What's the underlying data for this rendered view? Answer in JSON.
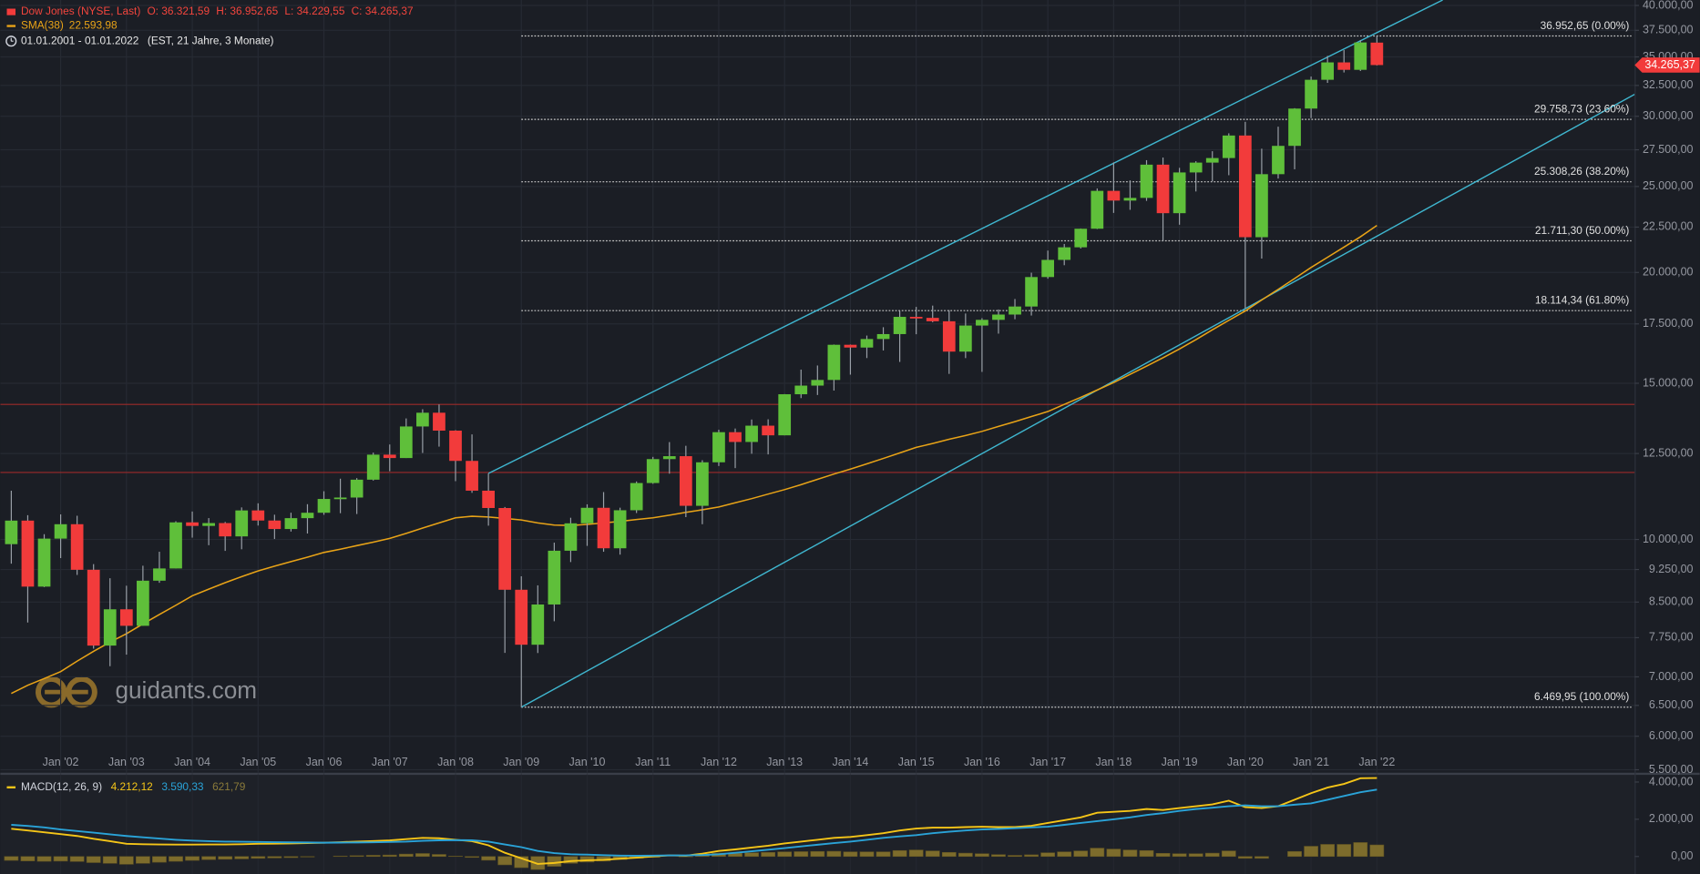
{
  "chart_data": [
    {
      "type": "candlestick",
      "title": "Dow Jones (NYSE, Last)",
      "title_values": [
        "O: 36.321,59",
        "H: 36.952,65",
        "L: 34.229,55",
        "C: 34.265,37"
      ],
      "period": "01.01.2001 - 01.01.2022",
      "period_note": "(EST, 21 Jahre, 3 Monate)",
      "watermark": "guidants.com",
      "last_label": "34.265,37",
      "up_color": "#5fbf3a",
      "down_color": "#f23b3b",
      "x": [
        "2001-04",
        "2001-07",
        "2001-10",
        "2002-01",
        "2002-04",
        "2002-07",
        "2002-10",
        "2003-01",
        "2003-04",
        "2003-07",
        "2003-10",
        "2004-01",
        "2004-04",
        "2004-07",
        "2004-10",
        "2005-01",
        "2005-04",
        "2005-07",
        "2005-10",
        "2006-01",
        "2006-04",
        "2006-07",
        "2006-10",
        "2007-01",
        "2007-04",
        "2007-07",
        "2007-10",
        "2008-01",
        "2008-04",
        "2008-07",
        "2008-10",
        "2009-01",
        "2009-04",
        "2009-07",
        "2009-10",
        "2010-01",
        "2010-04",
        "2010-07",
        "2010-10",
        "2011-01",
        "2011-04",
        "2011-07",
        "2011-10",
        "2012-01",
        "2012-04",
        "2012-07",
        "2012-10",
        "2013-01",
        "2013-04",
        "2013-07",
        "2013-10",
        "2014-01",
        "2014-04",
        "2014-07",
        "2014-10",
        "2015-01",
        "2015-04",
        "2015-07",
        "2015-10",
        "2016-01",
        "2016-04",
        "2016-07",
        "2016-10",
        "2017-01",
        "2017-04",
        "2017-07",
        "2017-10",
        "2018-01",
        "2018-04",
        "2018-07",
        "2018-10",
        "2019-01",
        "2019-04",
        "2019-07",
        "2019-10",
        "2020-01",
        "2020-04",
        "2020-07",
        "2020-10",
        "2021-01",
        "2021-04",
        "2021-07",
        "2021-10",
        "2022-01"
      ],
      "open": [
        9879,
        10502,
        8848,
        10022,
        10404,
        9243,
        7592,
        8342,
        7992,
        8985,
        9275,
        10454,
        10358,
        10435,
        10080,
        10783,
        10504,
        10275,
        10569,
        10718,
        11109,
        11150,
        11679,
        12463,
        12354,
        13409,
        13896,
        13265,
        12263,
        11350,
        10851,
        8776,
        7609,
        8447,
        9712,
        10428,
        10857,
        9774,
        10788,
        11578,
        12320,
        12414,
        10913,
        12218,
        13212,
        12880,
        13437,
        13104,
        14579,
        14910,
        15130,
        16577,
        16458,
        16827,
        17043,
        17823,
        17776,
        17620,
        16285,
        17425,
        17685,
        17930,
        18308,
        19763,
        20663,
        21350,
        22405,
        24719,
        24103,
        24271,
        26458,
        23327,
        25929,
        26600,
        26917,
        28538,
        21917,
        25813,
        27782,
        30606,
        32981,
        34503,
        33844,
        36321.59
      ],
      "high": [
        11350,
        10650,
        10137,
        10673,
        10635,
        9380,
        9043,
        8869,
        9341,
        9686,
        10484,
        10753,
        10571,
        10465,
        10868,
        10984,
        10664,
        10719,
        10959,
        11334,
        11709,
        11727,
        12529,
        12796,
        13692,
        14022,
        14198,
        13280,
        13136,
        11867,
        10881,
        9088,
        8877,
        9918,
        10580,
        10955,
        11309,
        10860,
        11625,
        12391,
        12876,
        12753,
        12284,
        13297,
        13338,
        13653,
        13661,
        14585,
        15542,
        15709,
        16588,
        16588,
        16978,
        17350,
        18103,
        18289,
        18351,
        18138,
        17978,
        17762,
        18168,
        18668,
        19987,
        21169,
        21535,
        22420,
        24876,
        26617,
        25400,
        26769,
        26952,
        26241,
        26695,
        27398,
        28702,
        29569,
        27580,
        29199,
        30637,
        33259,
        35091,
        35631,
        36565,
        36952.65
      ],
      "low": [
        9390,
        8062,
        8836,
        9529,
        9120,
        7532,
        7197,
        7416,
        7992,
        8936,
        9275,
        10048,
        9852,
        9708,
        9749,
        10368,
        10012,
        10207,
        10156,
        10661,
        10706,
        10683,
        11652,
        11939,
        12354,
        12518,
        12725,
        11634,
        11287,
        10365,
        7449,
        6469.95,
        7447,
        8087,
        9430,
        9835,
        9686,
        9614,
        10711,
        11555,
        11862,
        10597,
        10404,
        12101,
        12035,
        12492,
        12471,
        13104,
        14434,
        14551,
        14719,
        15340,
        16015,
        16334,
        15855,
        17037,
        17575,
        15370,
        16013,
        15450,
        17063,
        17713,
        17884,
        19677,
        20380,
        21283,
        22385,
        23344,
        23532,
        24084,
        21713,
        22639,
        24680,
        25339,
        25743,
        18214,
        20735,
        25523,
        26143,
        29856,
        32716,
        33613,
        33741,
        34229.55
      ],
      "close": [
        10502,
        8848,
        10022,
        10404,
        9243,
        7592,
        8342,
        7992,
        8985,
        9275,
        10454,
        10358,
        10435,
        10080,
        10783,
        10504,
        10275,
        10569,
        10718,
        11109,
        11150,
        11679,
        12463,
        12354,
        13409,
        13896,
        13265,
        12263,
        11350,
        10851,
        8776,
        7609,
        8447,
        9712,
        10428,
        10857,
        9774,
        10788,
        11578,
        12320,
        12414,
        10913,
        12218,
        13212,
        12880,
        13437,
        13104,
        14579,
        14910,
        15130,
        16577,
        16458,
        16827,
        17043,
        17823,
        17776,
        17620,
        16285,
        17425,
        17685,
        17930,
        18308,
        19763,
        20663,
        21350,
        22405,
        24719,
        24103,
        24271,
        26458,
        23327,
        25929,
        26600,
        26917,
        28538,
        21917,
        25813,
        27782,
        30606,
        32981,
        34503,
        33844,
        36338,
        34265.37
      ],
      "overlays": [
        {
          "name": "SMA(38)",
          "value_label": "22.593,98",
          "color": "#e8a317",
          "values": [
            6705,
            6850,
            6970,
            7096,
            7290,
            7480,
            7660,
            7830,
            8030,
            8230,
            8430,
            8640,
            8790,
            8940,
            9080,
            9216,
            9330,
            9440,
            9550,
            9668,
            9750,
            9840,
            9930,
            10028,
            10160,
            10300,
            10440,
            10579,
            10620,
            10600,
            10560,
            10519,
            10440,
            10380,
            10370,
            10400,
            10440,
            10480,
            10530,
            10579,
            10650,
            10730,
            10800,
            10880,
            11000,
            11120,
            11250,
            11380,
            11530,
            11690,
            11850,
            12006,
            12170,
            12340,
            12520,
            12700,
            12830,
            12970,
            13100,
            13240,
            13410,
            13580,
            13760,
            13940,
            14200,
            14460,
            14740,
            15030,
            15350,
            15680,
            16030,
            16400,
            16800,
            17230,
            17660,
            18100,
            18620,
            19140,
            19690,
            20260,
            20800,
            21360,
            21940,
            22593.98
          ]
        }
      ],
      "hlines": {
        "values": [
          14200,
          11900
        ],
        "color": "#9c2a2a"
      },
      "trendlines": [
        {
          "x": [
            "2008-07",
            "2023-01"
          ],
          "y": [
            11870,
            40570
          ],
          "color": "#3fb6cf"
        },
        {
          "x": [
            "2009-01",
            "2025-12"
          ],
          "y": [
            6470,
            31760
          ],
          "color": "#3fb6cf"
        }
      ],
      "fib": {
        "start": "2009-01",
        "color": "#c8c8c8",
        "levels": [
          {
            "value": 36952.65,
            "label": "36.952,65 (0.00%)"
          },
          {
            "value": 29758.73,
            "label": "29.758,73 (23.60%)"
          },
          {
            "value": 25308.26,
            "label": "25.308,26 (38.20%)"
          },
          {
            "value": 21711.3,
            "label": "21.711,30 (50.00%)"
          },
          {
            "value": 18114.34,
            "label": "18.114,34 (61.80%)"
          },
          {
            "value": 6469.95,
            "label": "6.469,95 (100.00%)"
          }
        ]
      },
      "xlim": [
        "2001-02",
        "2025-12"
      ],
      "xticks": [
        {
          "value": "2002-01",
          "label": "Jan '02"
        },
        {
          "value": "2003-01",
          "label": "Jan '03"
        },
        {
          "value": "2004-01",
          "label": "Jan '04"
        },
        {
          "value": "2005-01",
          "label": "Jan '05"
        },
        {
          "value": "2006-01",
          "label": "Jan '06"
        },
        {
          "value": "2007-01",
          "label": "Jan '07"
        },
        {
          "value": "2008-01",
          "label": "Jan '08"
        },
        {
          "value": "2009-01",
          "label": "Jan '09"
        },
        {
          "value": "2010-01",
          "label": "Jan '10"
        },
        {
          "value": "2011-01",
          "label": "Jan '11"
        },
        {
          "value": "2012-01",
          "label": "Jan '12"
        },
        {
          "value": "2013-01",
          "label": "Jan '13"
        },
        {
          "value": "2014-01",
          "label": "Jan '14"
        },
        {
          "value": "2015-01",
          "label": "Jan '15"
        },
        {
          "value": "2016-01",
          "label": "Jan '16"
        },
        {
          "value": "2017-01",
          "label": "Jan '17"
        },
        {
          "value": "2018-01",
          "label": "Jan '18"
        },
        {
          "value": "2019-01",
          "label": "Jan '19"
        },
        {
          "value": "2020-01",
          "label": "Jan '20"
        },
        {
          "value": "2021-01",
          "label": "Jan '21"
        },
        {
          "value": "2022-01",
          "label": "Jan '22"
        }
      ],
      "ylim": [
        5450,
        40570
      ],
      "log": true,
      "grid": true,
      "yticks": [
        {
          "value": 40000,
          "label": "40.000,00"
        },
        {
          "value": 37500,
          "label": "37.500,00"
        },
        {
          "value": 35000,
          "label": "35.000,00"
        },
        {
          "value": 32500,
          "label": "32.500,00"
        },
        {
          "value": 30000,
          "label": "30.000,00"
        },
        {
          "value": 27500,
          "label": "27.500,00"
        },
        {
          "value": 25000,
          "label": "25.000,00"
        },
        {
          "value": 22500,
          "label": "22.500,00"
        },
        {
          "value": 20000,
          "label": "20.000,00"
        },
        {
          "value": 17500,
          "label": "17.500,00"
        },
        {
          "value": 15000,
          "label": "15.000,00"
        },
        {
          "value": 12500,
          "label": "12.500,00"
        },
        {
          "value": 10000,
          "label": "10.000,00"
        },
        {
          "value": 9250,
          "label": "9.250,00"
        },
        {
          "value": 8500,
          "label": "8.500,00"
        },
        {
          "value": 7750,
          "label": "7.750,00"
        },
        {
          "value": 7000,
          "label": "7.000,00"
        },
        {
          "value": 6500,
          "label": "6.500,00"
        },
        {
          "value": 6000,
          "label": "6.000,00"
        },
        {
          "value": 5500,
          "label": "5.500,00"
        }
      ]
    },
    {
      "type": "macd",
      "title": "MACD(12, 26, 9)",
      "series": [
        {
          "value_label": "4.212,12",
          "color": "#f5c518",
          "values": [
            1490,
            1400,
            1300,
            1200,
            1100,
            950,
            820,
            680,
            660,
            650,
            640,
            640,
            650,
            650,
            660,
            680,
            690,
            700,
            720,
            740,
            770,
            800,
            830,
            860,
            930,
            1000,
            980,
            900,
            820,
            600,
            200,
            -100,
            -400,
            -350,
            -250,
            -200,
            -180,
            -120,
            -60,
            0,
            60,
            40,
            150,
            300,
            380,
            480,
            580,
            700,
            800,
            900,
            1000,
            1050,
            1150,
            1250,
            1400,
            1500,
            1550,
            1550,
            1580,
            1600,
            1580,
            1580,
            1650,
            1800,
            1950,
            2100,
            2350,
            2400,
            2450,
            2550,
            2500,
            2600,
            2700,
            2800,
            3000,
            2650,
            2600,
            2700,
            3050,
            3400,
            3700,
            3900,
            4200,
            4212.12
          ]
        },
        {
          "value_label": "3.590,33",
          "color": "#2aa3d8",
          "values": [
            1700,
            1640,
            1560,
            1450,
            1370,
            1280,
            1190,
            1100,
            1030,
            960,
            900,
            850,
            820,
            800,
            790,
            780,
            770,
            760,
            750,
            740,
            745,
            755,
            765,
            780,
            800,
            840,
            870,
            880,
            870,
            800,
            650,
            500,
            300,
            180,
            120,
            100,
            70,
            50,
            40,
            50,
            60,
            60,
            80,
            120,
            200,
            280,
            360,
            450,
            540,
            630,
            720,
            800,
            900,
            1000,
            1080,
            1150,
            1250,
            1330,
            1400,
            1450,
            1480,
            1520,
            1560,
            1600,
            1700,
            1800,
            1900,
            2000,
            2100,
            2230,
            2330,
            2450,
            2550,
            2620,
            2700,
            2750,
            2700,
            2700,
            2780,
            2850,
            3050,
            3250,
            3450,
            3590.33
          ]
        },
        {
          "value_label": "621,79",
          "color": "#7d6c2c",
          "text_color": "#8a7a3a",
          "values": [
            -210,
            -240,
            -260,
            -250,
            -270,
            -330,
            -370,
            -420,
            -370,
            -310,
            -260,
            -210,
            -170,
            -150,
            -130,
            -100,
            -80,
            -60,
            -30,
            0,
            25,
            45,
            65,
            80,
            130,
            160,
            110,
            20,
            -50,
            -200,
            -450,
            -600,
            -700,
            -530,
            -370,
            -300,
            -250,
            -170,
            -100,
            -50,
            0,
            -20,
            70,
            180,
            180,
            200,
            220,
            250,
            260,
            270,
            280,
            250,
            250,
            250,
            320,
            350,
            300,
            220,
            180,
            150,
            100,
            60,
            90,
            200,
            250,
            300,
            450,
            400,
            350,
            320,
            170,
            150,
            150,
            180,
            300,
            -100,
            -100,
            0,
            270,
            550,
            650,
            650,
            750,
            621.79
          ]
        }
      ],
      "ylim": [
        -941,
        4412
      ],
      "yticks": [
        {
          "value": 4000,
          "label": "4.000,00"
        },
        {
          "value": 2000,
          "label": "2.000,00"
        },
        {
          "value": 0,
          "label": "0,00"
        }
      ]
    }
  ]
}
